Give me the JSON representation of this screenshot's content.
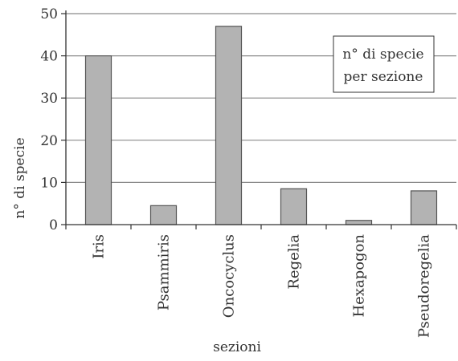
{
  "chart_data": {
    "type": "bar",
    "categories": [
      "Iris",
      "Psammiris",
      "Oncocyclus",
      "Regelia",
      "Hexapogon",
      "Pseudoregelia"
    ],
    "series": [
      {
        "name": "n° di specie per sezione",
        "values": [
          40,
          4.5,
          47,
          8.5,
          1,
          8
        ]
      }
    ],
    "xlabel": "sezioni",
    "ylabel": "n° di specie",
    "ylim": [
      0,
      50
    ],
    "yticks": [
      0,
      10,
      20,
      30,
      40,
      50
    ],
    "grid": true,
    "legend_position": "top-right",
    "legend_lines": [
      "n° di specie",
      "per sezione"
    ],
    "colors": {
      "bar_fill": "#b3b3b3",
      "bar_stroke": "#555555",
      "grid": "#8a8a8a",
      "axis": "#333333"
    }
  }
}
